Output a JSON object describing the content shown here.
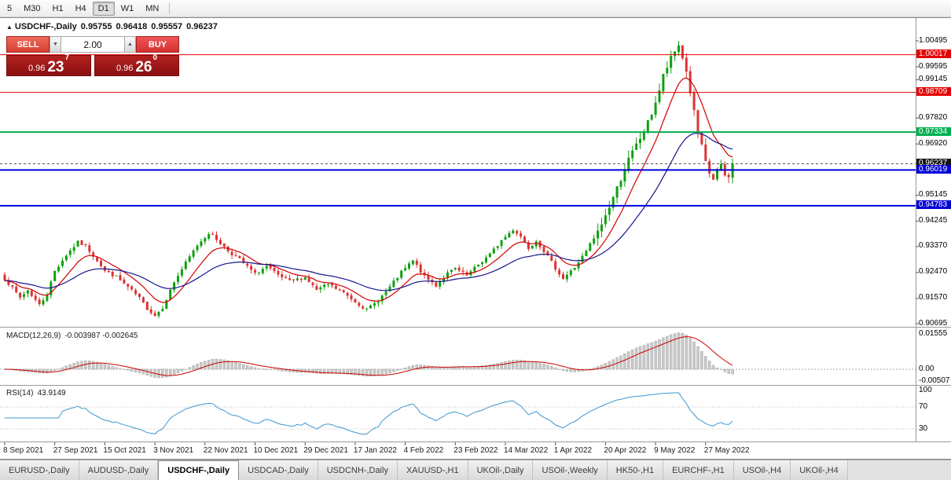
{
  "toolbar": {
    "items": [
      "5",
      "M30",
      "H1",
      "H4",
      "D1",
      "W1",
      "MN"
    ],
    "active": "D1"
  },
  "chart_header": {
    "collapse_icon": "▲",
    "symbol": "USDCHF-,Daily",
    "open": "0.95755",
    "high": "0.96418",
    "low": "0.95557",
    "close": "0.96237"
  },
  "trade_panel": {
    "sell_label": "SELL",
    "buy_label": "BUY",
    "lot_size": "2.00",
    "spin_down_icon": "▼",
    "spin_up_icon": "▲",
    "bid": {
      "prefix": "0.96",
      "pips": "23",
      "point": "7"
    },
    "ask": {
      "prefix": "0.96",
      "pips": "26",
      "point": "0"
    }
  },
  "colors": {
    "candle_up": "#10a010",
    "candle_down": "#dd3333",
    "ma_fast": "#d40000",
    "ma_slow": "#16168c",
    "macd_hist_fill": "#c9c9c9",
    "macd_hist_stroke": "#a8a8a8",
    "macd_signal": "#cc0000",
    "rsi_line": "#3d96d2",
    "level_red": "#e60000",
    "level_green": "#00b050",
    "level_blue": "#0000d8",
    "current_price_bg": "#141414"
  },
  "chart_data": {
    "type": "candlestick",
    "title": "USDCHF-,Daily",
    "ohlc_readout": {
      "open": 0.95755,
      "high": 0.96418,
      "low": 0.95557,
      "close": 0.96237
    },
    "price_scale": {
      "top": 1.01176,
      "bottom": 0.90587
    },
    "current_price": 0.96237,
    "peak_high": 1.00495,
    "candles": {
      "count": 190,
      "anchor_closes": [
        [
          0,
          0.9225
        ],
        [
          2,
          0.9192
        ],
        [
          4,
          0.916
        ],
        [
          6,
          0.9185
        ],
        [
          9,
          0.9135
        ],
        [
          11,
          0.9172
        ],
        [
          13,
          0.9252
        ],
        [
          16,
          0.9308
        ],
        [
          19,
          0.9352
        ],
        [
          21,
          0.9338
        ],
        [
          24,
          0.929
        ],
        [
          26,
          0.9252
        ],
        [
          29,
          0.9232
        ],
        [
          32,
          0.9196
        ],
        [
          35,
          0.9158
        ],
        [
          37,
          0.9122
        ],
        [
          39,
          0.9098
        ],
        [
          41,
          0.9126
        ],
        [
          44,
          0.9214
        ],
        [
          47,
          0.928
        ],
        [
          50,
          0.9342
        ],
        [
          53,
          0.9384
        ],
        [
          55,
          0.9362
        ],
        [
          58,
          0.9322
        ],
        [
          61,
          0.9292
        ],
        [
          65,
          0.9242
        ],
        [
          68,
          0.9268
        ],
        [
          71,
          0.9236
        ],
        [
          74,
          0.9216
        ],
        [
          78,
          0.923
        ],
        [
          81,
          0.9186
        ],
        [
          84,
          0.9206
        ],
        [
          88,
          0.9176
        ],
        [
          91,
          0.9146
        ],
        [
          94,
          0.9118
        ],
        [
          97,
          0.915
        ],
        [
          100,
          0.9196
        ],
        [
          103,
          0.9248
        ],
        [
          106,
          0.9288
        ],
        [
          109,
          0.9232
        ],
        [
          112,
          0.9202
        ],
        [
          115,
          0.9244
        ],
        [
          117,
          0.926
        ],
        [
          120,
          0.9236
        ],
        [
          123,
          0.9274
        ],
        [
          126,
          0.931
        ],
        [
          129,
          0.9358
        ],
        [
          132,
          0.9396
        ],
        [
          134,
          0.9372
        ],
        [
          136,
          0.9332
        ],
        [
          138,
          0.9358
        ],
        [
          140,
          0.9322
        ],
        [
          143,
          0.9262
        ],
        [
          145,
          0.9226
        ],
        [
          148,
          0.9264
        ],
        [
          151,
          0.932
        ],
        [
          154,
          0.9386
        ],
        [
          156,
          0.9444
        ],
        [
          158,
          0.9508
        ],
        [
          160,
          0.9572
        ],
        [
          162,
          0.9638
        ],
        [
          164,
          0.9688
        ],
        [
          166,
          0.9734
        ],
        [
          168,
          0.9798
        ],
        [
          170,
          0.9878
        ],
        [
          171,
          0.9928
        ],
        [
          173,
          0.9988
        ],
        [
          175,
          1.0035
        ],
        [
          176,
          0.9992
        ],
        [
          177,
          0.9942
        ],
        [
          178,
          0.9872
        ],
        [
          179,
          0.9802
        ],
        [
          180,
          0.9732
        ],
        [
          181,
          0.9682
        ],
        [
          182,
          0.9626
        ],
        [
          183,
          0.959
        ],
        [
          184,
          0.957
        ],
        [
          185,
          0.96
        ],
        [
          186,
          0.9614
        ],
        [
          187,
          0.9582
        ],
        [
          188,
          0.9574
        ],
        [
          189,
          0.96237
        ]
      ],
      "last_candle": {
        "open": 0.95755,
        "high": 0.96418,
        "low": 0.95557,
        "close": 0.96237
      }
    },
    "overlays": [
      {
        "name": "ma-fast",
        "period": 10,
        "color_key": "ma_fast"
      },
      {
        "name": "ma-slow",
        "period": 30,
        "color_key": "ma_slow"
      }
    ],
    "levels": [
      {
        "price": 1.00017,
        "color": "#e60000",
        "width": 1
      },
      {
        "price": 0.98709,
        "color": "#e60000",
        "width": 1
      },
      {
        "price": 0.97334,
        "color": "#00b050",
        "width": 2
      },
      {
        "price": 0.96019,
        "color": "#0000d8",
        "width": 2
      },
      {
        "price": 0.94783,
        "color": "#0000d8",
        "width": 2
      }
    ],
    "price_axis_labels": [
      {
        "text": "1.00495",
        "price": 1.00495,
        "type": "plain"
      },
      {
        "text": "1.00017",
        "price": 1.00017,
        "type": "level-red"
      },
      {
        "text": "0.99595",
        "price": 0.99595,
        "type": "plain"
      },
      {
        "text": "0.99145",
        "price": 0.99145,
        "type": "plain"
      },
      {
        "text": "0.98709",
        "price": 0.98709,
        "type": "level-red"
      },
      {
        "text": "0.97820",
        "price": 0.9782,
        "type": "plain"
      },
      {
        "text": "0.97334",
        "price": 0.97334,
        "type": "level-green"
      },
      {
        "text": "0.96920",
        "price": 0.9692,
        "type": "plain"
      },
      {
        "text": "0.96237",
        "price": 0.96237,
        "type": "current"
      },
      {
        "text": "0.96019",
        "price": 0.96019,
        "type": "level-blue"
      },
      {
        "text": "0.95145",
        "price": 0.95145,
        "type": "plain"
      },
      {
        "text": "0.94783",
        "price": 0.94783,
        "type": "level-blue"
      },
      {
        "text": "0.94245",
        "price": 0.94245,
        "type": "plain"
      },
      {
        "text": "0.93370",
        "price": 0.9337,
        "type": "plain"
      },
      {
        "text": "0.92470",
        "price": 0.9247,
        "type": "plain"
      },
      {
        "text": "0.91570",
        "price": 0.9157,
        "type": "plain"
      },
      {
        "text": "0.90695",
        "price": 0.90695,
        "type": "plain"
      }
    ],
    "date_ticks": [
      {
        "index": 0,
        "label": "8 Sep 2021"
      },
      {
        "index": 13,
        "label": "27 Sep 2021"
      },
      {
        "index": 26,
        "label": "15 Oct 2021"
      },
      {
        "index": 39,
        "label": "3 Nov 2021"
      },
      {
        "index": 52,
        "label": "22 Nov 2021"
      },
      {
        "index": 65,
        "label": "10 Dec 2021"
      },
      {
        "index": 78,
        "label": "29 Dec 2021"
      },
      {
        "index": 91,
        "label": "17 Jan 2022"
      },
      {
        "index": 104,
        "label": "4 Feb 2022"
      },
      {
        "index": 117,
        "label": "23 Feb 2022"
      },
      {
        "index": 130,
        "label": "14 Mar 2022"
      },
      {
        "index": 143,
        "label": "1 Apr 2022"
      },
      {
        "index": 156,
        "label": "20 Apr 2022"
      },
      {
        "index": 169,
        "label": "9 May 2022"
      },
      {
        "index": 182,
        "label": "27 May 2022"
      }
    ],
    "subcharts": [
      {
        "name": "macd",
        "label": "MACD(12,26,9)",
        "values_text": "-0.003987 -0.002645",
        "scale_ticks": [
          {
            "text": "0.01555",
            "value": 0.01555
          },
          {
            "text": "0.00",
            "value": 0
          },
          {
            "text": "-0.00507",
            "value": -0.00507
          }
        ]
      },
      {
        "name": "rsi",
        "label": "RSI(14)",
        "values_text": "43.9149",
        "guides": [
          70,
          30
        ],
        "scale_ticks": [
          {
            "text": "100",
            "value": 100
          },
          {
            "text": "70",
            "value": 70
          },
          {
            "text": "30",
            "value": 30
          }
        ]
      }
    ]
  },
  "tab_bar": {
    "tabs": [
      "EURUSD-,Daily",
      "AUDUSD-,Daily",
      "USDCHF-,Daily",
      "USDCAD-,Daily",
      "USDCNH-,Daily",
      "XAUUSD-,H1",
      "UKOil-,Daily",
      "USOil-,Weekly",
      "HK50-,H1",
      "EURCHF-,H1",
      "USOil-,H4",
      "UKOil-,H4"
    ],
    "active": "USDCHF-,Daily"
  }
}
